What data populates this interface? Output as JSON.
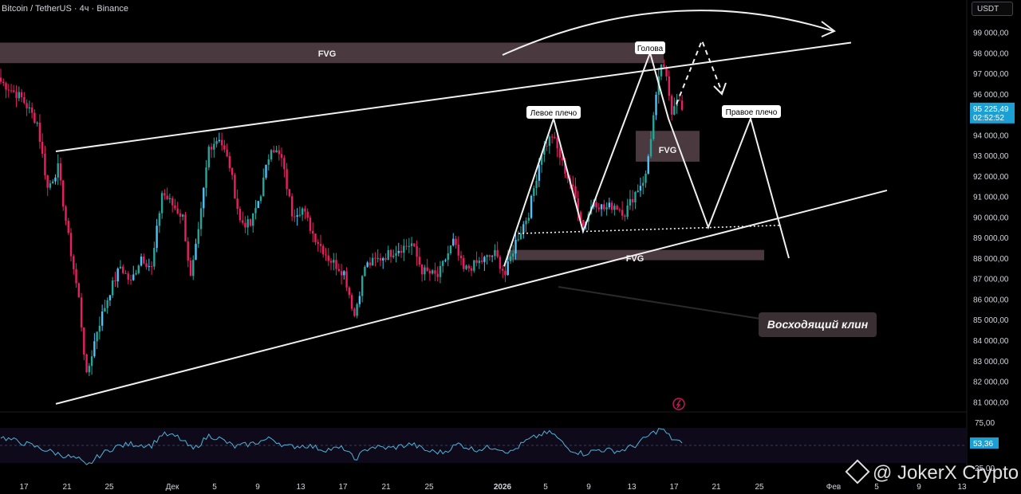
{
  "header": {
    "symbol": "Bitcoin / TetherUS · 4ч · Binance",
    "currency": "USDT"
  },
  "watermark": {
    "text": "@ JokerX Crypto"
  },
  "price_label": {
    "value": "95 225,49",
    "countdown": "02:52:52"
  },
  "rsi_label": {
    "value": "53,36",
    "level_top": "75,00",
    "level_bottom": "25,00"
  },
  "colors": {
    "up": "#26a69a",
    "up_alt": "#4fc3f7",
    "down": "#e91e63",
    "rsi": "#4fb3d9",
    "price_tag": "#1ba0d6",
    "fvg": "#4a3a40"
  },
  "annotations": {
    "fvg_top": "FVG",
    "fvg_mid": "FVG",
    "fvg_low": "FVG",
    "left_shoulder": "Левое плечо",
    "head": "Голова",
    "right_shoulder": "Правое плечо",
    "pattern": "Восходящий клин"
  },
  "chart_data": {
    "type": "candlestick",
    "title": "Bitcoin / TetherUS · 4ч · Binance",
    "y_axis_ticks": [
      "81 000,00",
      "82 000,00",
      "83 000,00",
      "84 000,00",
      "85 000,00",
      "86 000,00",
      "87 000,00",
      "88 000,00",
      "89 000,00",
      "90 000,00",
      "91 000,00",
      "92 000,00",
      "93 000,00",
      "94 000,00",
      "95 000,00",
      "96 000,00",
      "97 000,00",
      "98 000,00",
      "99 000,00"
    ],
    "x_axis_ticks": [
      "17",
      "21",
      "25",
      "Дек",
      "5",
      "9",
      "13",
      "17",
      "21",
      "25",
      "2026",
      "5",
      "9",
      "13",
      "17",
      "21",
      "25",
      "Фев",
      "5",
      "9",
      "13"
    ],
    "ylim": [
      80700,
      99800
    ],
    "last_price": 95225.49,
    "price_path_anchors": [
      [
        0,
        96600
      ],
      [
        8,
        95800
      ],
      [
        14,
        94600
      ],
      [
        18,
        91400
      ],
      [
        22,
        92400
      ],
      [
        26,
        89000
      ],
      [
        30,
        86000
      ],
      [
        33,
        82200
      ],
      [
        37,
        84500
      ],
      [
        42,
        86400
      ],
      [
        46,
        87600
      ],
      [
        50,
        86800
      ],
      [
        54,
        88100
      ],
      [
        58,
        87500
      ],
      [
        62,
        91200
      ],
      [
        66,
        90600
      ],
      [
        70,
        90000
      ],
      [
        73,
        87000
      ],
      [
        76,
        89200
      ],
      [
        80,
        93400
      ],
      [
        84,
        93900
      ],
      [
        88,
        92500
      ],
      [
        92,
        89800
      ],
      [
        96,
        89600
      ],
      [
        100,
        91200
      ],
      [
        104,
        93500
      ],
      [
        108,
        92800
      ],
      [
        112,
        90200
      ],
      [
        116,
        90400
      ],
      [
        120,
        89200
      ],
      [
        126,
        88000
      ],
      [
        132,
        87300
      ],
      [
        136,
        85200
      ],
      [
        140,
        87600
      ],
      [
        146,
        88000
      ],
      [
        152,
        88400
      ],
      [
        158,
        88700
      ],
      [
        162,
        87400
      ],
      [
        168,
        87100
      ],
      [
        174,
        88800
      ],
      [
        178,
        87400
      ],
      [
        184,
        87800
      ],
      [
        190,
        88200
      ],
      [
        194,
        87200
      ],
      [
        198,
        88800
      ],
      [
        203,
        90200
      ],
      [
        208,
        93200
      ],
      [
        212,
        94000
      ],
      [
        216,
        92600
      ],
      [
        220,
        91300
      ],
      [
        224,
        89600
      ],
      [
        228,
        90800
      ],
      [
        232,
        90400
      ],
      [
        236,
        90600
      ],
      [
        240,
        90200
      ],
      [
        244,
        91200
      ],
      [
        248,
        92000
      ],
      [
        251,
        94900
      ],
      [
        254,
        97500
      ],
      [
        256,
        96700
      ],
      [
        258,
        95200
      ],
      [
        260,
        95900
      ],
      [
        262,
        95225
      ]
    ],
    "rsi": {
      "levels": [
        75,
        25
      ],
      "last": 53.36,
      "anchors": [
        [
          0,
          62
        ],
        [
          10,
          52
        ],
        [
          22,
          38
        ],
        [
          30,
          30
        ],
        [
          33,
          20
        ],
        [
          38,
          36
        ],
        [
          44,
          48
        ],
        [
          50,
          52
        ],
        [
          58,
          50
        ],
        [
          62,
          66
        ],
        [
          68,
          62
        ],
        [
          74,
          44
        ],
        [
          80,
          64
        ],
        [
          84,
          60
        ],
        [
          90,
          48
        ],
        [
          96,
          52
        ],
        [
          104,
          60
        ],
        [
          110,
          48
        ],
        [
          118,
          50
        ],
        [
          124,
          44
        ],
        [
          132,
          46
        ],
        [
          136,
          30
        ],
        [
          142,
          48
        ],
        [
          150,
          46
        ],
        [
          158,
          52
        ],
        [
          164,
          42
        ],
        [
          170,
          40
        ],
        [
          176,
          52
        ],
        [
          182,
          44
        ],
        [
          190,
          48
        ],
        [
          196,
          40
        ],
        [
          202,
          56
        ],
        [
          208,
          66
        ],
        [
          212,
          68
        ],
        [
          218,
          46
        ],
        [
          224,
          38
        ],
        [
          230,
          44
        ],
        [
          238,
          42
        ],
        [
          244,
          50
        ],
        [
          250,
          66
        ],
        [
          254,
          74
        ],
        [
          258,
          60
        ],
        [
          262,
          53.36
        ]
      ]
    }
  }
}
